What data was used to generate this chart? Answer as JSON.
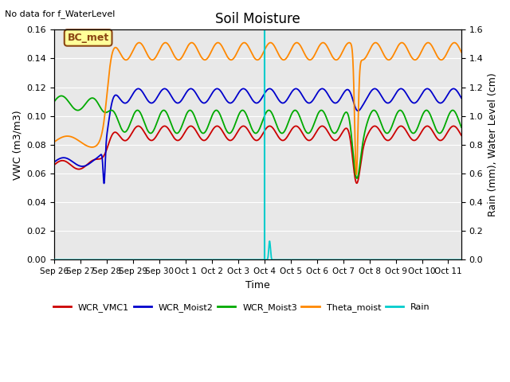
{
  "title": "Soil Moisture",
  "note": "No data for f_WaterLevel",
  "ylabel_left": "VWC (m3/m3)",
  "ylabel_right": "Rain (mm), Water Level (cm)",
  "xlabel": "Time",
  "ylim_left": [
    0.0,
    0.16
  ],
  "ylim_right": [
    0.0,
    1.6
  ],
  "tick_labels": [
    "Sep 26",
    "Sep 27",
    "Sep 28",
    "Sep 29",
    "Sep 30",
    "Oct 1",
    "Oct 2",
    "Oct 3",
    "Oct 4",
    "Oct 5",
    "Oct 6",
    "Oct 7",
    "Oct 8",
    "Oct 9",
    "Oct 10",
    "Oct 11"
  ],
  "tick_positions": [
    0,
    1,
    2,
    3,
    4,
    5,
    6,
    7,
    8,
    9,
    10,
    11,
    12,
    13,
    14,
    15
  ],
  "bg_color": "#e8e8e8",
  "colors": {
    "WCR_VMC1": "#cc0000",
    "WCR_Moist2": "#0000cc",
    "WCR_Moist3": "#00aa00",
    "Theta_moist": "#ff8800",
    "Rain": "#00cccc"
  },
  "box_label": "BC_met",
  "box_facecolor": "#ffff99",
  "box_edgecolor": "#8b4513",
  "yticks_left": [
    0.0,
    0.02,
    0.04,
    0.06,
    0.08,
    0.1,
    0.12,
    0.14,
    0.16
  ],
  "yticks_right": [
    0.0,
    0.2,
    0.4,
    0.6,
    0.8,
    1.0,
    1.2,
    1.4,
    1.6
  ],
  "xlim": [
    0,
    15.5
  ],
  "transition_day": 2.0,
  "cyan_vline_day": 8.0,
  "dip_day": 11.5,
  "rain_spike_day": 8.2
}
